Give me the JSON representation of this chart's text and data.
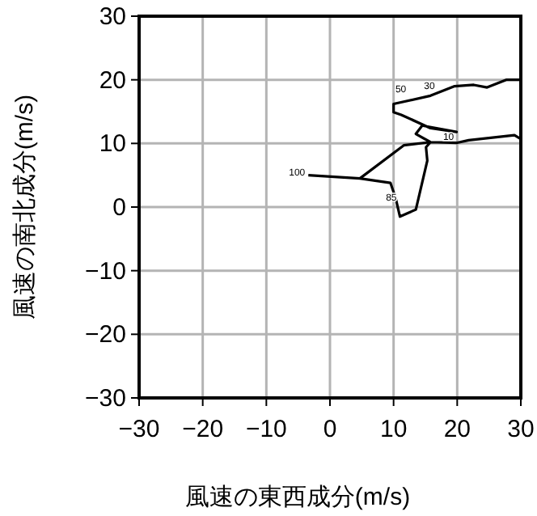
{
  "chart_data": {
    "type": "line",
    "xlabel": "風速の東西成分(m/s)",
    "ylabel": "風速の南北成分(m/s)",
    "series": [
      {
        "color": "#000000",
        "x": [
          -3.4,
          4.7,
          9.5,
          10.3,
          11,
          13.5,
          15.3,
          15.1,
          15.8,
          11.6,
          4.7,
          null,
          30,
          27.7,
          24.7,
          22.6,
          19.6,
          15.8,
          10,
          10,
          11.2,
          15.8,
          19.9,
          14.5,
          13.5,
          15.8,
          20,
          21.8,
          29,
          30
        ],
        "values": [
          5.0,
          4.5,
          3.8,
          1.5,
          -1.5,
          -0.4,
          7.3,
          9.4,
          10.2,
          9.7,
          4.5,
          null,
          20,
          20,
          18.8,
          19.2,
          19,
          17.5,
          16.2,
          14.9,
          14.5,
          12.4,
          11.8,
          12.8,
          11.5,
          10.2,
          10.1,
          10.5,
          11.3,
          10.7
        ]
      }
    ],
    "annotations": [
      {
        "text": "100",
        "x": -3.4,
        "y": 4.5
      },
      {
        "text": "85",
        "x": 11,
        "y": 0.5
      },
      {
        "text": "10",
        "x": 20,
        "y": 10.1
      },
      {
        "text": "50",
        "x": 12.5,
        "y": 17.5
      },
      {
        "text": "30",
        "x": 17,
        "y": 18
      }
    ],
    "xlim": [
      -30,
      30
    ],
    "ylim": [
      -30,
      30
    ],
    "xticks": [
      {
        "value": -30,
        "label": "−30"
      },
      {
        "value": -20,
        "label": "−20"
      },
      {
        "value": -10,
        "label": "−10"
      },
      0,
      10,
      20,
      30
    ],
    "yticks": [
      {
        "value": -30,
        "label": "−30"
      },
      {
        "value": -20,
        "label": "−20"
      },
      {
        "value": -10,
        "label": "−10"
      },
      0,
      10,
      20,
      30
    ],
    "grid": true,
    "line_style": "solid",
    "marker": "none"
  }
}
